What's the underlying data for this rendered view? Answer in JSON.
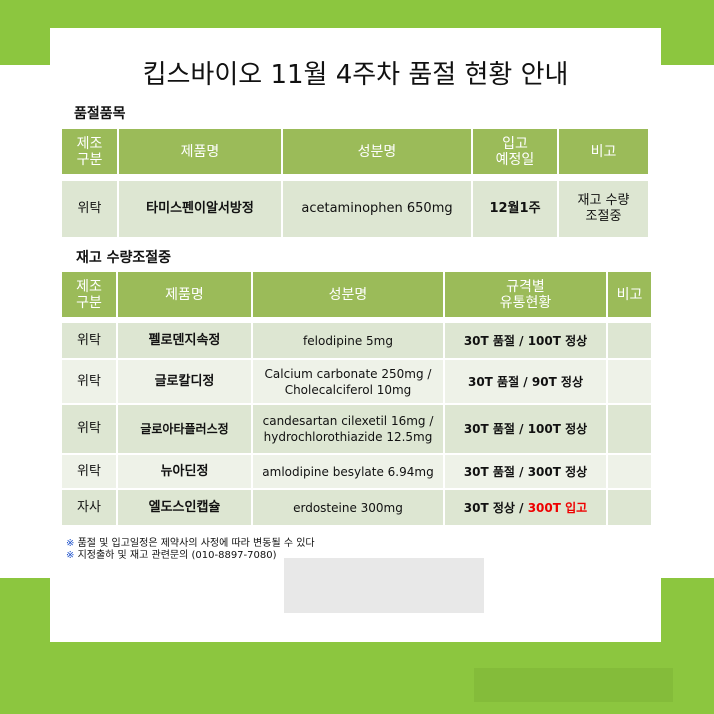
{
  "title": "킵스바이오 11월 4주차 품절 현황 안내",
  "section1": {
    "heading": "품절품목",
    "headers": [
      "제조\n구분",
      "제품명",
      "성분명",
      "입고\n예정일",
      "비고"
    ],
    "rows": [
      [
        "위탁",
        "타미스펜이알서방정",
        "acetaminophen 650mg",
        "12월1주",
        "재고 수량\n조절중"
      ]
    ]
  },
  "section2": {
    "heading": "재고 수량조절중",
    "headers": [
      "제조\n구분",
      "제품명",
      "성분명",
      "규격별\n유통현황",
      "비고"
    ],
    "rows": [
      {
        "maker": "위탁",
        "product": "펠로덴지속정",
        "ingredient": "felodipine 5mg",
        "status": "30T 품절 / 100T 정상",
        "status_red": "",
        "note": ""
      },
      {
        "maker": "위탁",
        "product": "글로칼디정",
        "ingredient": "Calcium carbonate 250mg / Cholecalciferol 10mg",
        "status": "30T 품절 / 90T 정상",
        "status_red": "",
        "note": ""
      },
      {
        "maker": "위탁",
        "product": "글로아타플러스정",
        "ingredient": "candesartan cilexetil 16mg / hydrochlorothiazide 12.5mg",
        "status": "30T 품절 / 100T 정상",
        "status_red": "",
        "note": ""
      },
      {
        "maker": "위탁",
        "product": "뉴아딘정",
        "ingredient": "amlodipine besylate 6.94mg",
        "status": "30T 품절 / 300T 정상",
        "status_red": "",
        "note": ""
      },
      {
        "maker": "자사",
        "product": "엘도스인캡슐",
        "ingredient": "erdosteine 300mg",
        "status": "30T 정상 / ",
        "status_red": "300T 입고",
        "note": ""
      }
    ]
  },
  "notes": {
    "mark": "※",
    "line1": "품절 및 입고일정은 제약사의 사정에 따라 변동될 수 있다",
    "line2": "지정출하 및 재고 관련문의 (010-8897-7080)"
  },
  "colors": {
    "band": "#8cc63f",
    "header": "#9bbb59",
    "row_dark": "#dde6d2",
    "row_light": "#eef2e8",
    "highlight": "#ee0000"
  }
}
